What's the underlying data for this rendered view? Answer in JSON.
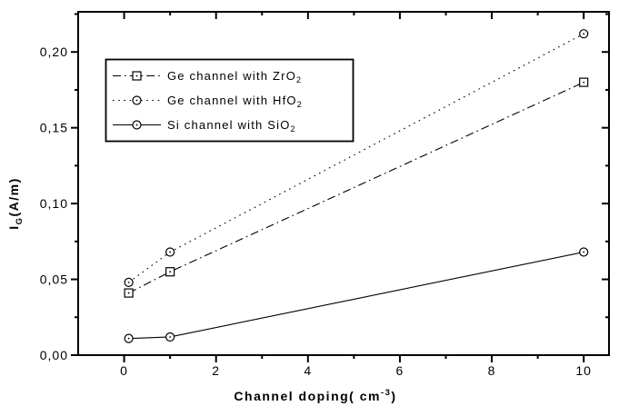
{
  "figure": {
    "background": "#ffffff",
    "ink_color": "#000000"
  },
  "chart_data": {
    "type": "line",
    "title": "",
    "xlabel": "Channel doping( cm^-3)",
    "xlabel_parts": {
      "main": "Channel doping( cm",
      "sup": "-3",
      "close": ")"
    },
    "ylabel": "I_G(A/m)",
    "ylabel_parts": {
      "main": "I",
      "sub": "G",
      "rest": "(A/m)"
    },
    "x": [
      0.1,
      1,
      10
    ],
    "series": [
      {
        "name": "Ge channel with ZrO2",
        "label_main": "Ge channel with ZrO",
        "label_sub": "2",
        "line_style": "dashdot",
        "marker": "square",
        "values": [
          0.041,
          0.055,
          0.18
        ]
      },
      {
        "name": "Ge channel with HfO2",
        "label_main": "Ge channel with HfO",
        "label_sub": "2",
        "line_style": "dotted",
        "marker": "circle",
        "values": [
          0.048,
          0.068,
          0.212
        ]
      },
      {
        "name": "Si channel with SiO2",
        "label_main": "Si channel with SiO",
        "label_sub": "2",
        "line_style": "solid",
        "marker": "circle",
        "values": [
          0.011,
          0.012,
          0.068
        ]
      }
    ],
    "xlim": [
      -1,
      10.55
    ],
    "ylim": [
      0,
      0.2265
    ],
    "x_major_ticks": [
      0,
      2,
      4,
      6,
      8,
      10
    ],
    "x_major_labels": [
      "0",
      "2",
      "4",
      "6",
      "8",
      "10"
    ],
    "x_minor_ticks": [
      1,
      3,
      5,
      7,
      9
    ],
    "y_major_ticks": [
      0,
      0.05,
      0.1,
      0.15,
      0.2
    ],
    "y_major_labels": [
      "0,00",
      "0,05",
      "0,10",
      "0,15",
      "0,20"
    ],
    "y_minor_ticks": [
      0.025,
      0.075,
      0.125,
      0.175,
      0.225
    ],
    "grid": false,
    "legend_position": "upper-left-inside",
    "colors": {
      "ink": "#000000",
      "background": "#ffffff",
      "marker_fill": "#ffffff"
    }
  }
}
